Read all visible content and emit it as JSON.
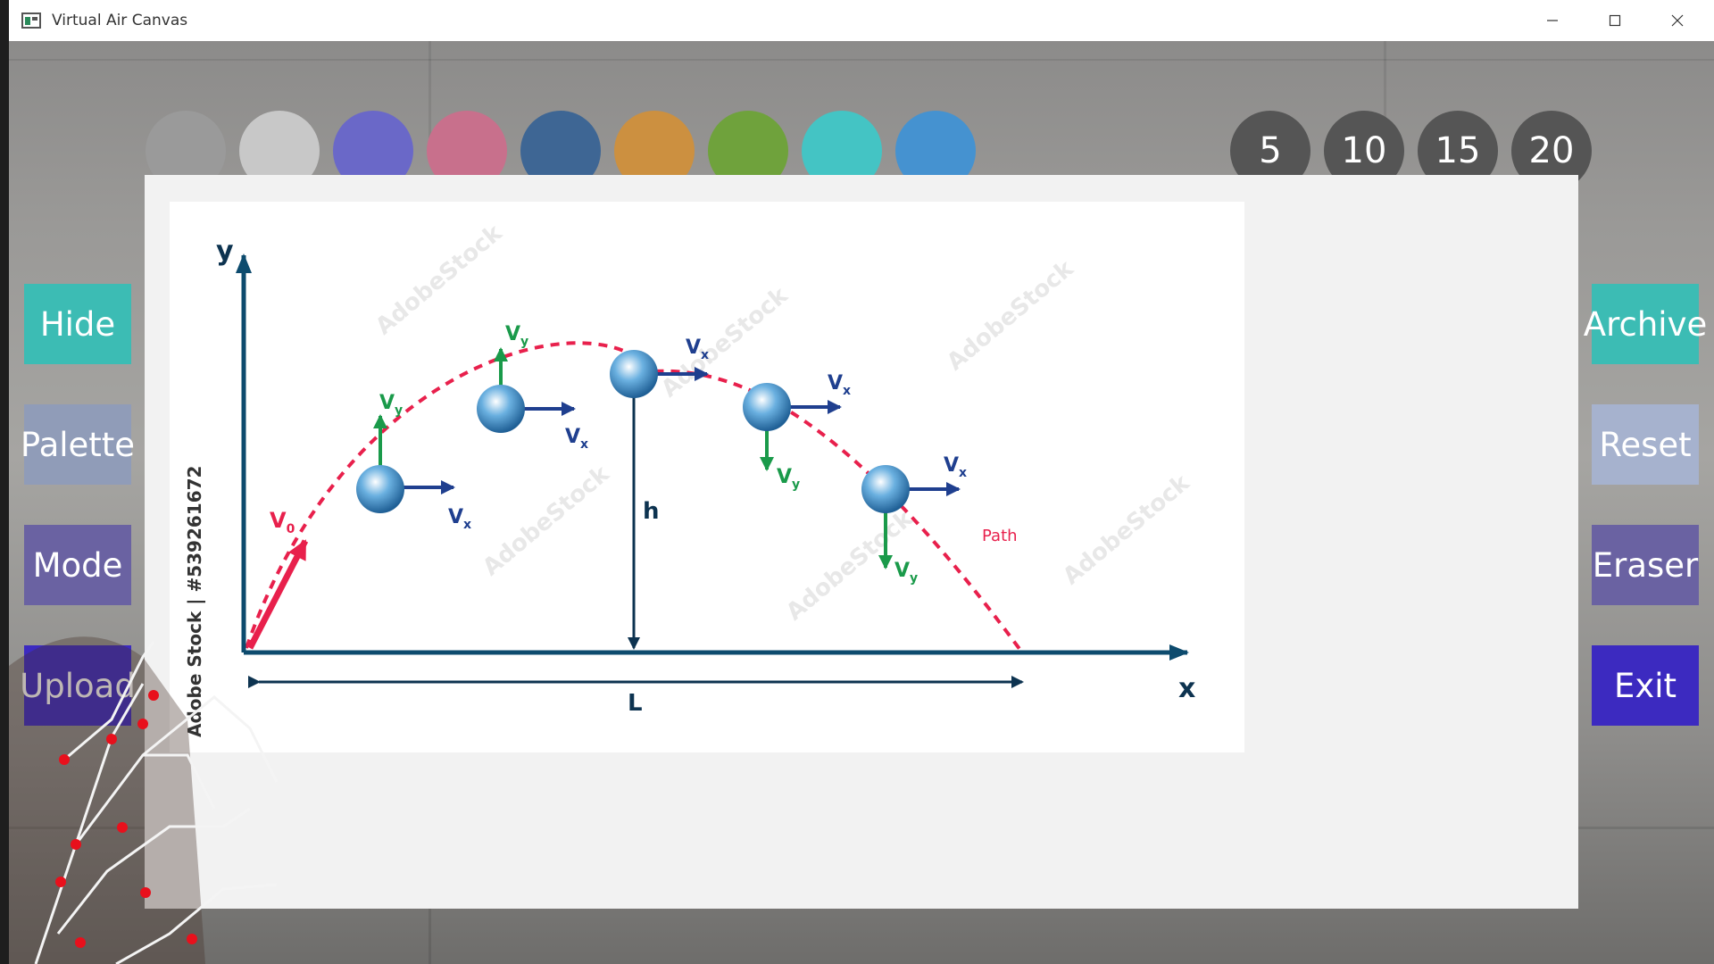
{
  "window": {
    "title": "Virtual Air Canvas",
    "minimize_icon": "minimize-icon",
    "maximize_icon": "maximize-icon",
    "close_icon": "close-icon"
  },
  "palette": {
    "colors": [
      "#9a9a9a",
      "#c8c8c8",
      "#6a68c8",
      "#c8708c",
      "#3e6694",
      "#cc9040",
      "#6fa23c",
      "#44c4c4",
      "#4592d0"
    ]
  },
  "brush_sizes": [
    "5",
    "10",
    "15",
    "20"
  ],
  "left_buttons": [
    {
      "label": "Hide",
      "color": "#3cbcb4"
    },
    {
      "label": "Palette",
      "color": "#909cb8"
    },
    {
      "label": "Mode",
      "color": "#6a62a2"
    },
    {
      "label": "Upload",
      "color": "#3c2ac0"
    }
  ],
  "right_buttons": [
    {
      "label": "Archive",
      "color": "#3cbcb4"
    },
    {
      "label": "Reset",
      "color": "#a6b2ce"
    },
    {
      "label": "Eraser",
      "color": "#6a62a2"
    },
    {
      "label": "Exit",
      "color": "#3c2ac0"
    }
  ],
  "diagram": {
    "y_axis": "y",
    "x_axis": "x",
    "v0": "V",
    "v0_sub": "0",
    "vx": "V",
    "vx_sub": "x",
    "vy": "V",
    "vy_sub": "y",
    "height_label": "h",
    "range_label": "L",
    "path_label": "Path",
    "watermark": "Adobe Stock | #539261672"
  }
}
